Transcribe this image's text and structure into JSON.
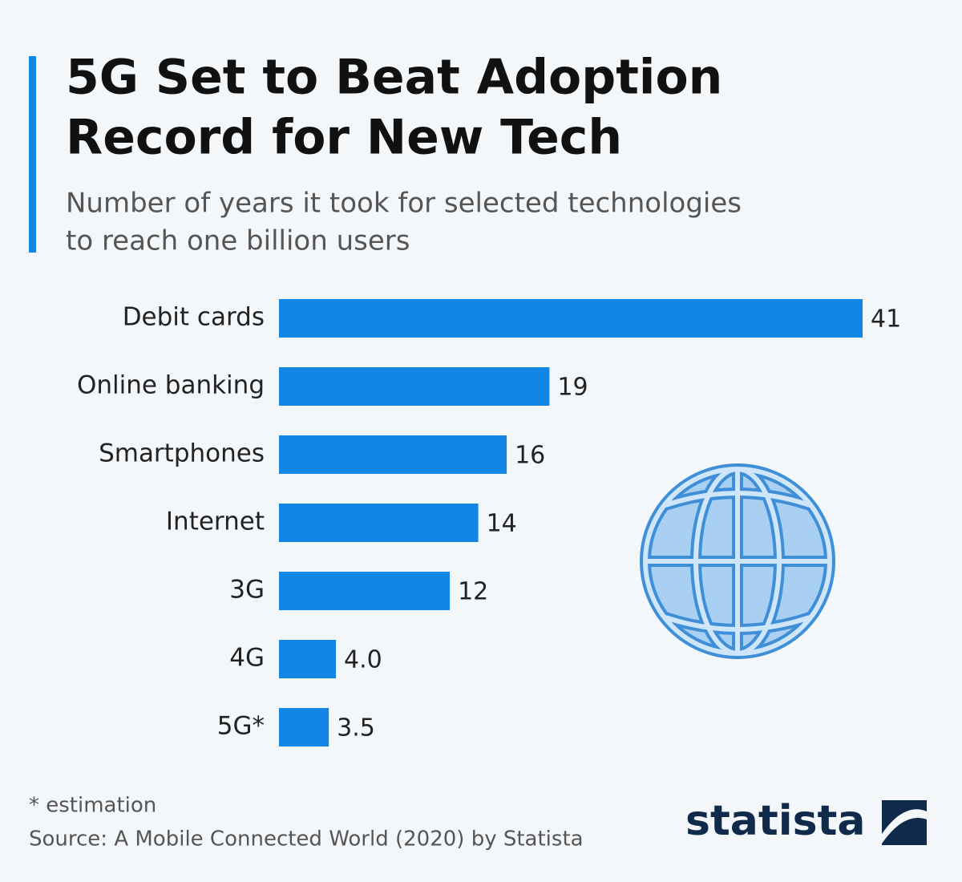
{
  "chart_data": {
    "type": "bar",
    "orientation": "horizontal",
    "title": [
      "5G Set to Beat Adoption",
      "Record for New Tech"
    ],
    "subtitle": [
      "Number of years it took for selected technologies",
      "to reach one billion users"
    ],
    "categories": [
      "Debit cards",
      "Online banking",
      "Smartphones",
      "Internet",
      "3G",
      "4G",
      "5G*"
    ],
    "values": [
      41,
      19,
      16,
      14,
      12,
      4,
      3.5
    ],
    "value_labels": [
      "41",
      "19",
      "16",
      "14",
      "12",
      "4.0",
      "3.5"
    ],
    "color": "#1385e5",
    "footnote": "* estimation",
    "source": "Source: A Mobile Connected World (2020) by Statista",
    "brand": "statista"
  }
}
